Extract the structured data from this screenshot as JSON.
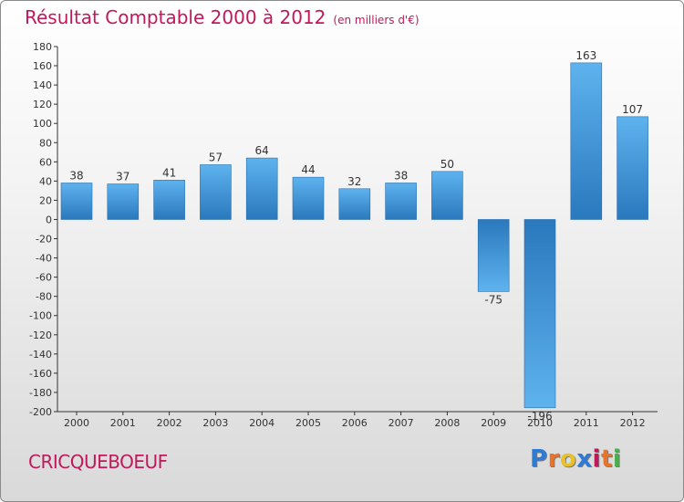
{
  "chart_data": {
    "type": "bar",
    "title": "Résultat Comptable 2000 à 2012",
    "subtitle": "(en milliers d'€)",
    "categories": [
      "2000",
      "2001",
      "2002",
      "2003",
      "2004",
      "2005",
      "2006",
      "2007",
      "2008",
      "2009",
      "2010",
      "2011",
      "2012"
    ],
    "values": [
      38,
      37,
      41,
      57,
      64,
      44,
      32,
      38,
      50,
      -75,
      -196,
      163,
      107
    ],
    "value_labels": [
      "38",
      "37",
      "41",
      "57",
      "64",
      "44",
      "32",
      "38",
      "50",
      "-75",
      "-196",
      "163",
      "107"
    ],
    "ylim": [
      -200,
      180
    ],
    "yticks": [
      180,
      160,
      140,
      120,
      100,
      80,
      60,
      40,
      20,
      0,
      -20,
      -40,
      -60,
      -80,
      -100,
      -120,
      -140,
      -160,
      -180,
      -200
    ],
    "xlabel": "",
    "ylabel": "",
    "grid": false,
    "bar_color": "#3a8fd4"
  },
  "commune": "CRICQUEBOEUF",
  "logo": {
    "letters": [
      "P",
      "r",
      "o",
      "x",
      "i",
      "t",
      "i"
    ],
    "colors": [
      "#2e7bd6",
      "#e8732a",
      "#e8c02a",
      "#2e7bd6",
      "#c2185b",
      "#e8732a",
      "#46b04a"
    ]
  }
}
